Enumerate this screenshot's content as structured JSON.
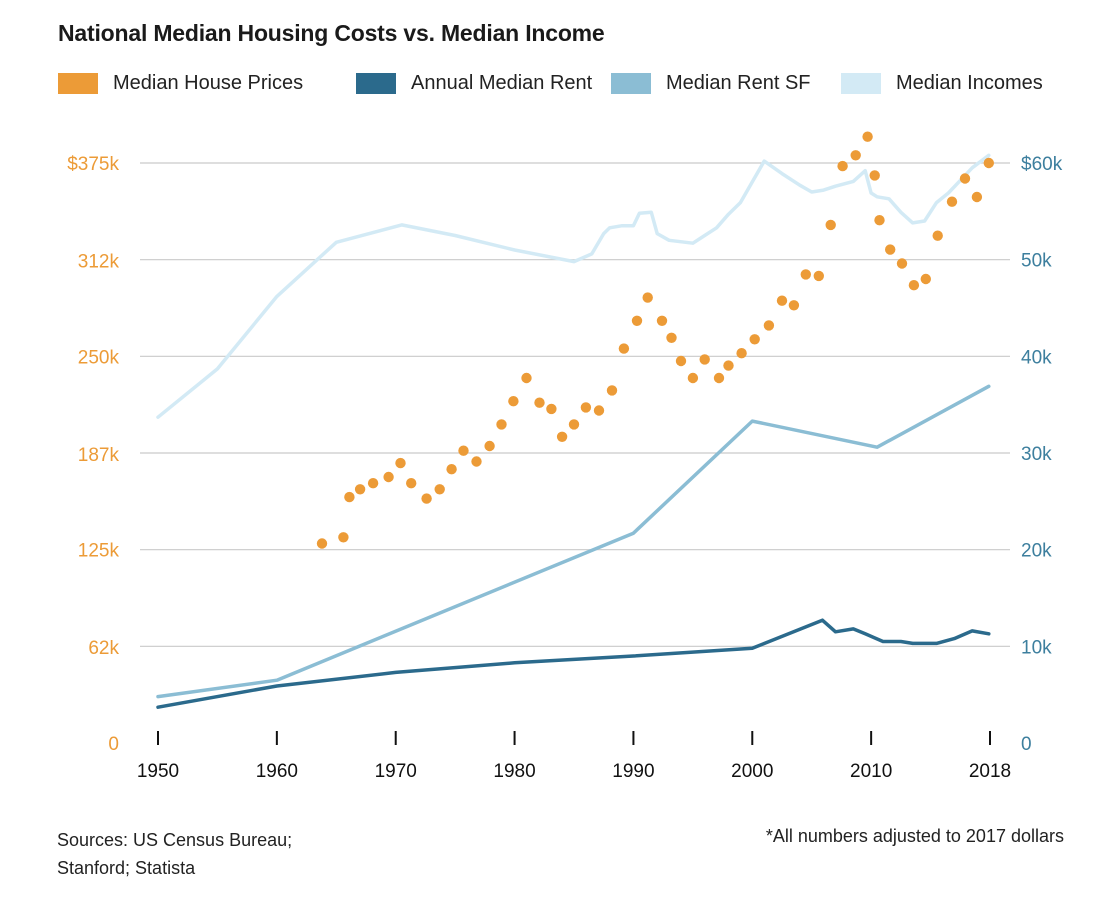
{
  "title": "National Median Housing Costs vs. Median Income",
  "legend": [
    {
      "label": "Median House Prices",
      "color": "#ec9b37"
    },
    {
      "label": "Annual Median Rent",
      "color": "#2b6a8c"
    },
    {
      "label": "Median Rent SF",
      "color": "#8bbdd4"
    },
    {
      "label": "Median Incomes",
      "color": "#d3eaf5"
    }
  ],
  "footer": {
    "sources_line1": "Sources: US Census Bureau;",
    "sources_line2": "Stanford; Statista",
    "note": "*All numbers adjusted to 2017  dollars"
  },
  "chart_data": {
    "type": "line",
    "title": "National Median Housing Costs vs. Median Income",
    "x_ticks": [
      1950,
      1960,
      1970,
      1980,
      1990,
      2000,
      2010,
      2018
    ],
    "left_axis": {
      "ticks": [
        0,
        62,
        125,
        187,
        250,
        312,
        375
      ],
      "labels": [
        "0",
        "62k",
        "125k",
        "187k",
        "250k",
        "312k",
        "$375k"
      ],
      "ylim": [
        0,
        375
      ],
      "units": "thousands of dollars",
      "color": "#ec9b37"
    },
    "right_axis": {
      "ticks": [
        0,
        10,
        20,
        30,
        40,
        50,
        60
      ],
      "labels": [
        "0",
        "10k",
        "20k",
        "30k",
        "40k",
        "50k",
        "$60k"
      ],
      "ylim": [
        0,
        60
      ],
      "units": "thousands of dollars",
      "color": "#3d7f9e"
    },
    "grid": true,
    "series": [
      {
        "name": "Median House Prices",
        "type": "scatter",
        "axis": "left",
        "color": "#ec9b37",
        "x": [
          1963.8,
          1965.6,
          1966.1,
          1967.0,
          1968.1,
          1969.4,
          1970.4,
          1971.3,
          1972.6,
          1973.7,
          1974.7,
          1975.7,
          1976.8,
          1977.9,
          1978.9,
          1979.9,
          1981.0,
          1982.1,
          1983.1,
          1984.0,
          1985.0,
          1986.0,
          1987.1,
          1988.2,
          1989.2,
          1990.3,
          1991.2,
          1992.4,
          1993.2,
          1994.0,
          1995.0,
          1996.0,
          1997.2,
          1998.0,
          1999.1,
          2000.2,
          2001.4,
          2002.5,
          2003.5,
          2004.5,
          2005.6,
          2006.6,
          2007.6,
          2008.7,
          2009.7,
          2010.3,
          2010.7,
          2011.6,
          2012.6,
          2013.6,
          2014.6,
          2015.6,
          2016.8,
          2017.9,
          2018.9,
          2019.9
        ],
        "y": [
          129,
          133,
          159,
          164,
          168,
          172,
          181,
          168,
          158,
          164,
          177,
          189,
          182,
          192,
          206,
          221,
          236,
          220,
          216,
          198,
          206,
          217,
          215,
          228,
          255,
          273,
          288,
          273,
          262,
          247,
          236,
          248,
          236,
          244,
          252,
          261,
          270,
          286,
          283,
          303,
          302,
          335,
          373,
          380,
          392,
          367,
          338,
          319,
          310,
          296,
          300,
          328,
          350,
          365,
          353,
          375
        ]
      },
      {
        "name": "Annual Median Rent",
        "type": "line",
        "axis": "right",
        "color": "#2b6a8c",
        "x": [
          1950,
          1960,
          1970,
          1980,
          1990,
          2000,
          2005.9,
          2007,
          2008.5,
          2009.5,
          2011,
          2012.5,
          2013.5,
          2015.5,
          2017,
          2018.5,
          2019.9
        ],
        "y": [
          3.7,
          5.9,
          7.3,
          8.3,
          9.0,
          9.8,
          12.7,
          11.5,
          11.8,
          11.3,
          10.5,
          10.5,
          10.3,
          10.3,
          10.8,
          11.6,
          11.3
        ]
      },
      {
        "name": "Median Rent SF",
        "type": "line",
        "axis": "right",
        "color": "#8bbdd4",
        "x": [
          1950,
          1960,
          1990,
          2000,
          2010.5,
          2019.9
        ],
        "y": [
          4.8,
          6.5,
          21.7,
          33.3,
          30.6,
          36.9
        ]
      },
      {
        "name": "Median Incomes",
        "type": "line",
        "axis": "right",
        "color": "#d3eaf5",
        "x": [
          1950,
          1955,
          1960,
          1965,
          1970.5,
          1975,
          1980,
          1985,
          1986.5,
          1987.5,
          1988,
          1989,
          1990,
          1990.5,
          1991.5,
          1992,
          1993,
          1995,
          1996,
          1997,
          1998,
          1999,
          2001,
          2002.5,
          2004,
          2005,
          2006,
          2007,
          2008.5,
          2009.5,
          2010,
          2010.5,
          2011.5,
          2012.5,
          2013.5,
          2014.5,
          2015.5,
          2016.5,
          2017.5,
          2018.5,
          2019.9
        ],
        "y": [
          33.7,
          38.7,
          46.2,
          51.8,
          53.6,
          52.5,
          51.0,
          49.8,
          50.6,
          52.7,
          53.3,
          53.5,
          53.5,
          54.8,
          54.9,
          52.7,
          52.0,
          51.7,
          52.5,
          53.3,
          54.7,
          55.9,
          60.2,
          58.9,
          57.7,
          57.0,
          57.2,
          57.6,
          58.1,
          59.2,
          56.9,
          56.5,
          56.3,
          54.9,
          53.8,
          54.0,
          55.9,
          56.9,
          58.2,
          59.5,
          60.8
        ]
      }
    ]
  }
}
